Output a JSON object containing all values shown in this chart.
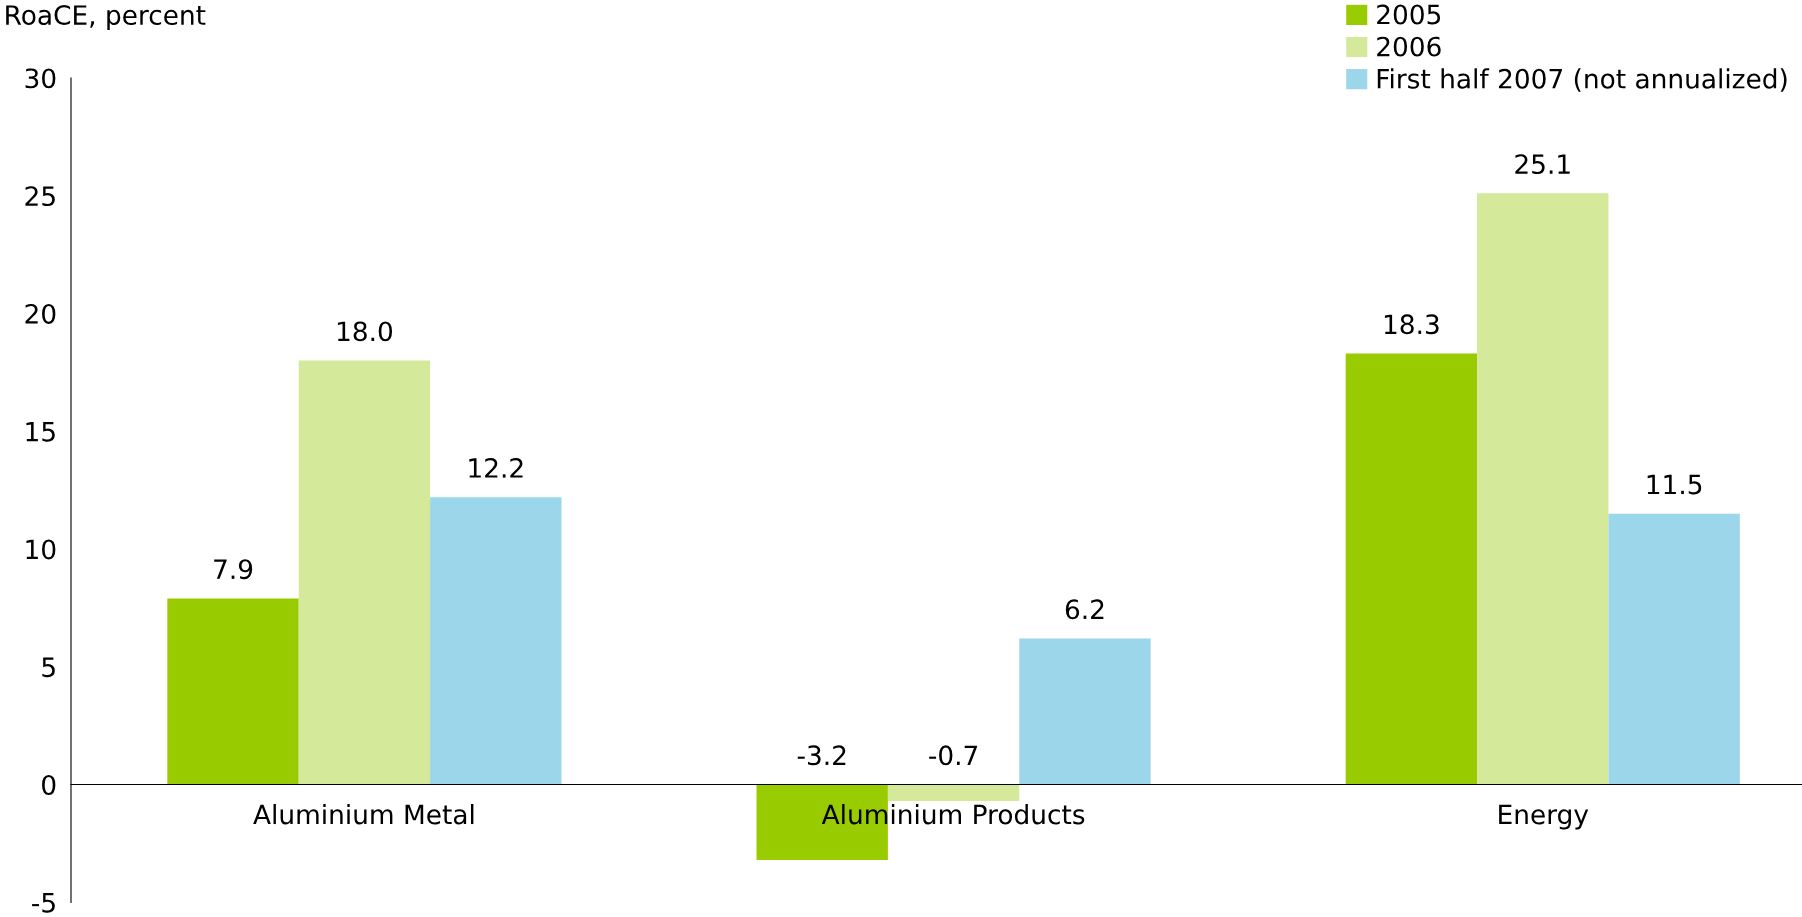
{
  "chart_data": {
    "type": "bar",
    "ylabel": "RoaCE, percent",
    "categories": [
      "Aluminium Metal",
      "Aluminium Products",
      "Energy"
    ],
    "series": [
      {
        "name": "2005",
        "color": "#99cc00",
        "values": [
          7.9,
          -3.2,
          18.3
        ],
        "value_labels": [
          "7.9",
          "-3.2",
          "18.3"
        ]
      },
      {
        "name": "2006",
        "color": "#d5e99a",
        "values": [
          18.0,
          -0.7,
          25.1
        ],
        "value_labels": [
          "18.0",
          "-0.7",
          "25.1"
        ]
      },
      {
        "name": "First half 2007 (not annualized)",
        "color": "#9cd6ea",
        "values": [
          12.2,
          6.2,
          11.5
        ],
        "value_labels": [
          "12.2",
          "6.2",
          "11.5"
        ]
      }
    ],
    "ylim": [
      -5,
      30
    ],
    "yticks": [
      -5,
      0,
      5,
      10,
      15,
      20,
      25,
      30
    ],
    "grid": false,
    "legend": "top right"
  }
}
